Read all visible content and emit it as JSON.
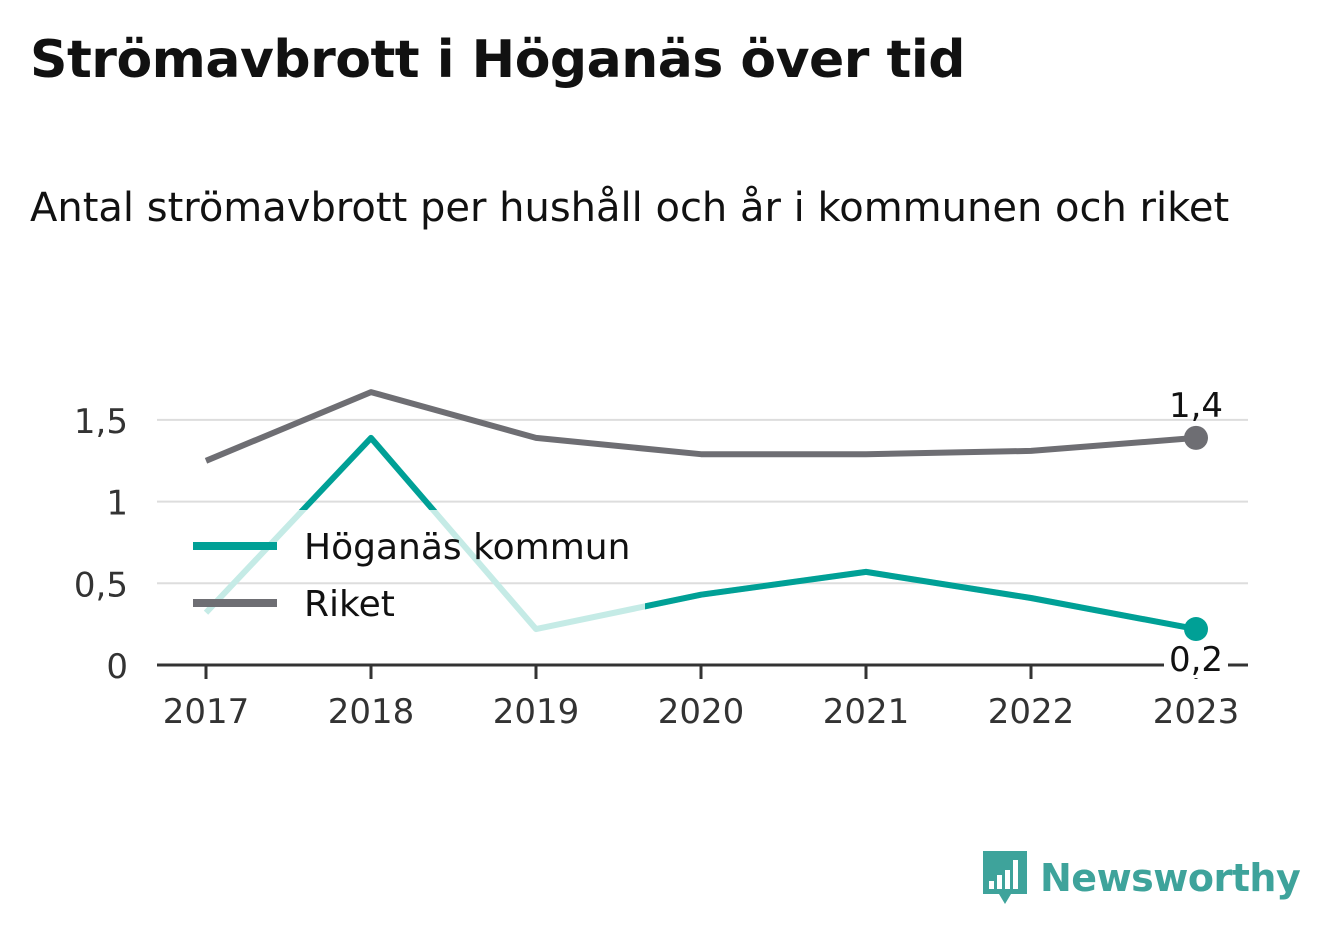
{
  "title": "Strömavbrott i Höganäs över tid",
  "subtitle": "Antal strömavbrott per hushåll och år i kommunen och riket",
  "brand": {
    "name": "Newsworthy",
    "icon": "bar-chart-bubble-icon",
    "color": "#3ea39b"
  },
  "colors": {
    "hoganas": "#00a096",
    "hoganas_faded": "#c5ebe6",
    "riket": "#6e6e73",
    "grid": "#dddddd",
    "axis": "#333333"
  },
  "chart_data": {
    "type": "line",
    "x": [
      "2017",
      "2018",
      "2019",
      "2020",
      "2021",
      "2022",
      "2023"
    ],
    "series": [
      {
        "name": "Höganäs kommun",
        "values": [
          0.32,
          1.39,
          0.22,
          0.43,
          0.57,
          0.41,
          0.22
        ]
      },
      {
        "name": "Riket",
        "values": [
          1.25,
          1.67,
          1.39,
          1.29,
          1.29,
          1.31,
          1.39
        ]
      }
    ],
    "ylim": [
      0,
      1.75
    ],
    "yticks": [
      0,
      0.5,
      1,
      1.5
    ],
    "ytick_labels": [
      "0",
      "0,5",
      "1",
      "1,5"
    ],
    "end_labels": [
      "0,2",
      "1,4"
    ],
    "legend_position": "left",
    "grid": true,
    "xlabel": "",
    "ylabel": ""
  }
}
